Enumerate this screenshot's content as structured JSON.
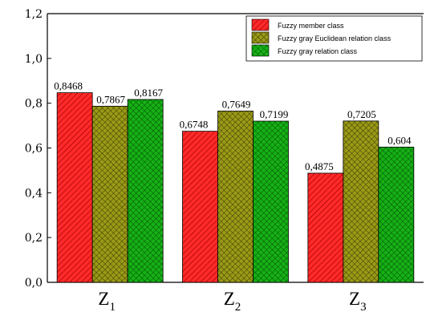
{
  "chart_data": {
    "type": "bar",
    "categories": [
      {
        "main": "Z",
        "sub": "1"
      },
      {
        "main": "Z",
        "sub": "2"
      },
      {
        "main": "Z",
        "sub": "3"
      }
    ],
    "series": [
      {
        "name": "Fuzzy member class",
        "values": [
          0.8468,
          0.6748,
          0.4875
        ],
        "labels": [
          "0,8468",
          "0,6748",
          "0,4875"
        ],
        "color": "#ff0000",
        "pattern": "diag-lines"
      },
      {
        "name": "Fuzzy gray Euclidean relation class",
        "values": [
          0.7867,
          0.7649,
          0.7205
        ],
        "labels": [
          "0,7867",
          "0,7649",
          "0,7205"
        ],
        "color": "#808000",
        "pattern": "crosshatch"
      },
      {
        "name": "Fuzzy gray relation class",
        "values": [
          0.8167,
          0.7199,
          0.604
        ],
        "labels": [
          "0,8167",
          "0,7199",
          "0,604"
        ],
        "color": "#00a000",
        "pattern": "crosshatch"
      }
    ],
    "ylim": [
      0,
      1.2
    ],
    "yticks": [
      "0,0",
      "0,2",
      "0,4",
      "0,6",
      "0,8",
      "1,0",
      "1,2"
    ],
    "xlabel": "",
    "ylabel": "",
    "title": "",
    "legend_position": "top-right",
    "grid": false
  }
}
